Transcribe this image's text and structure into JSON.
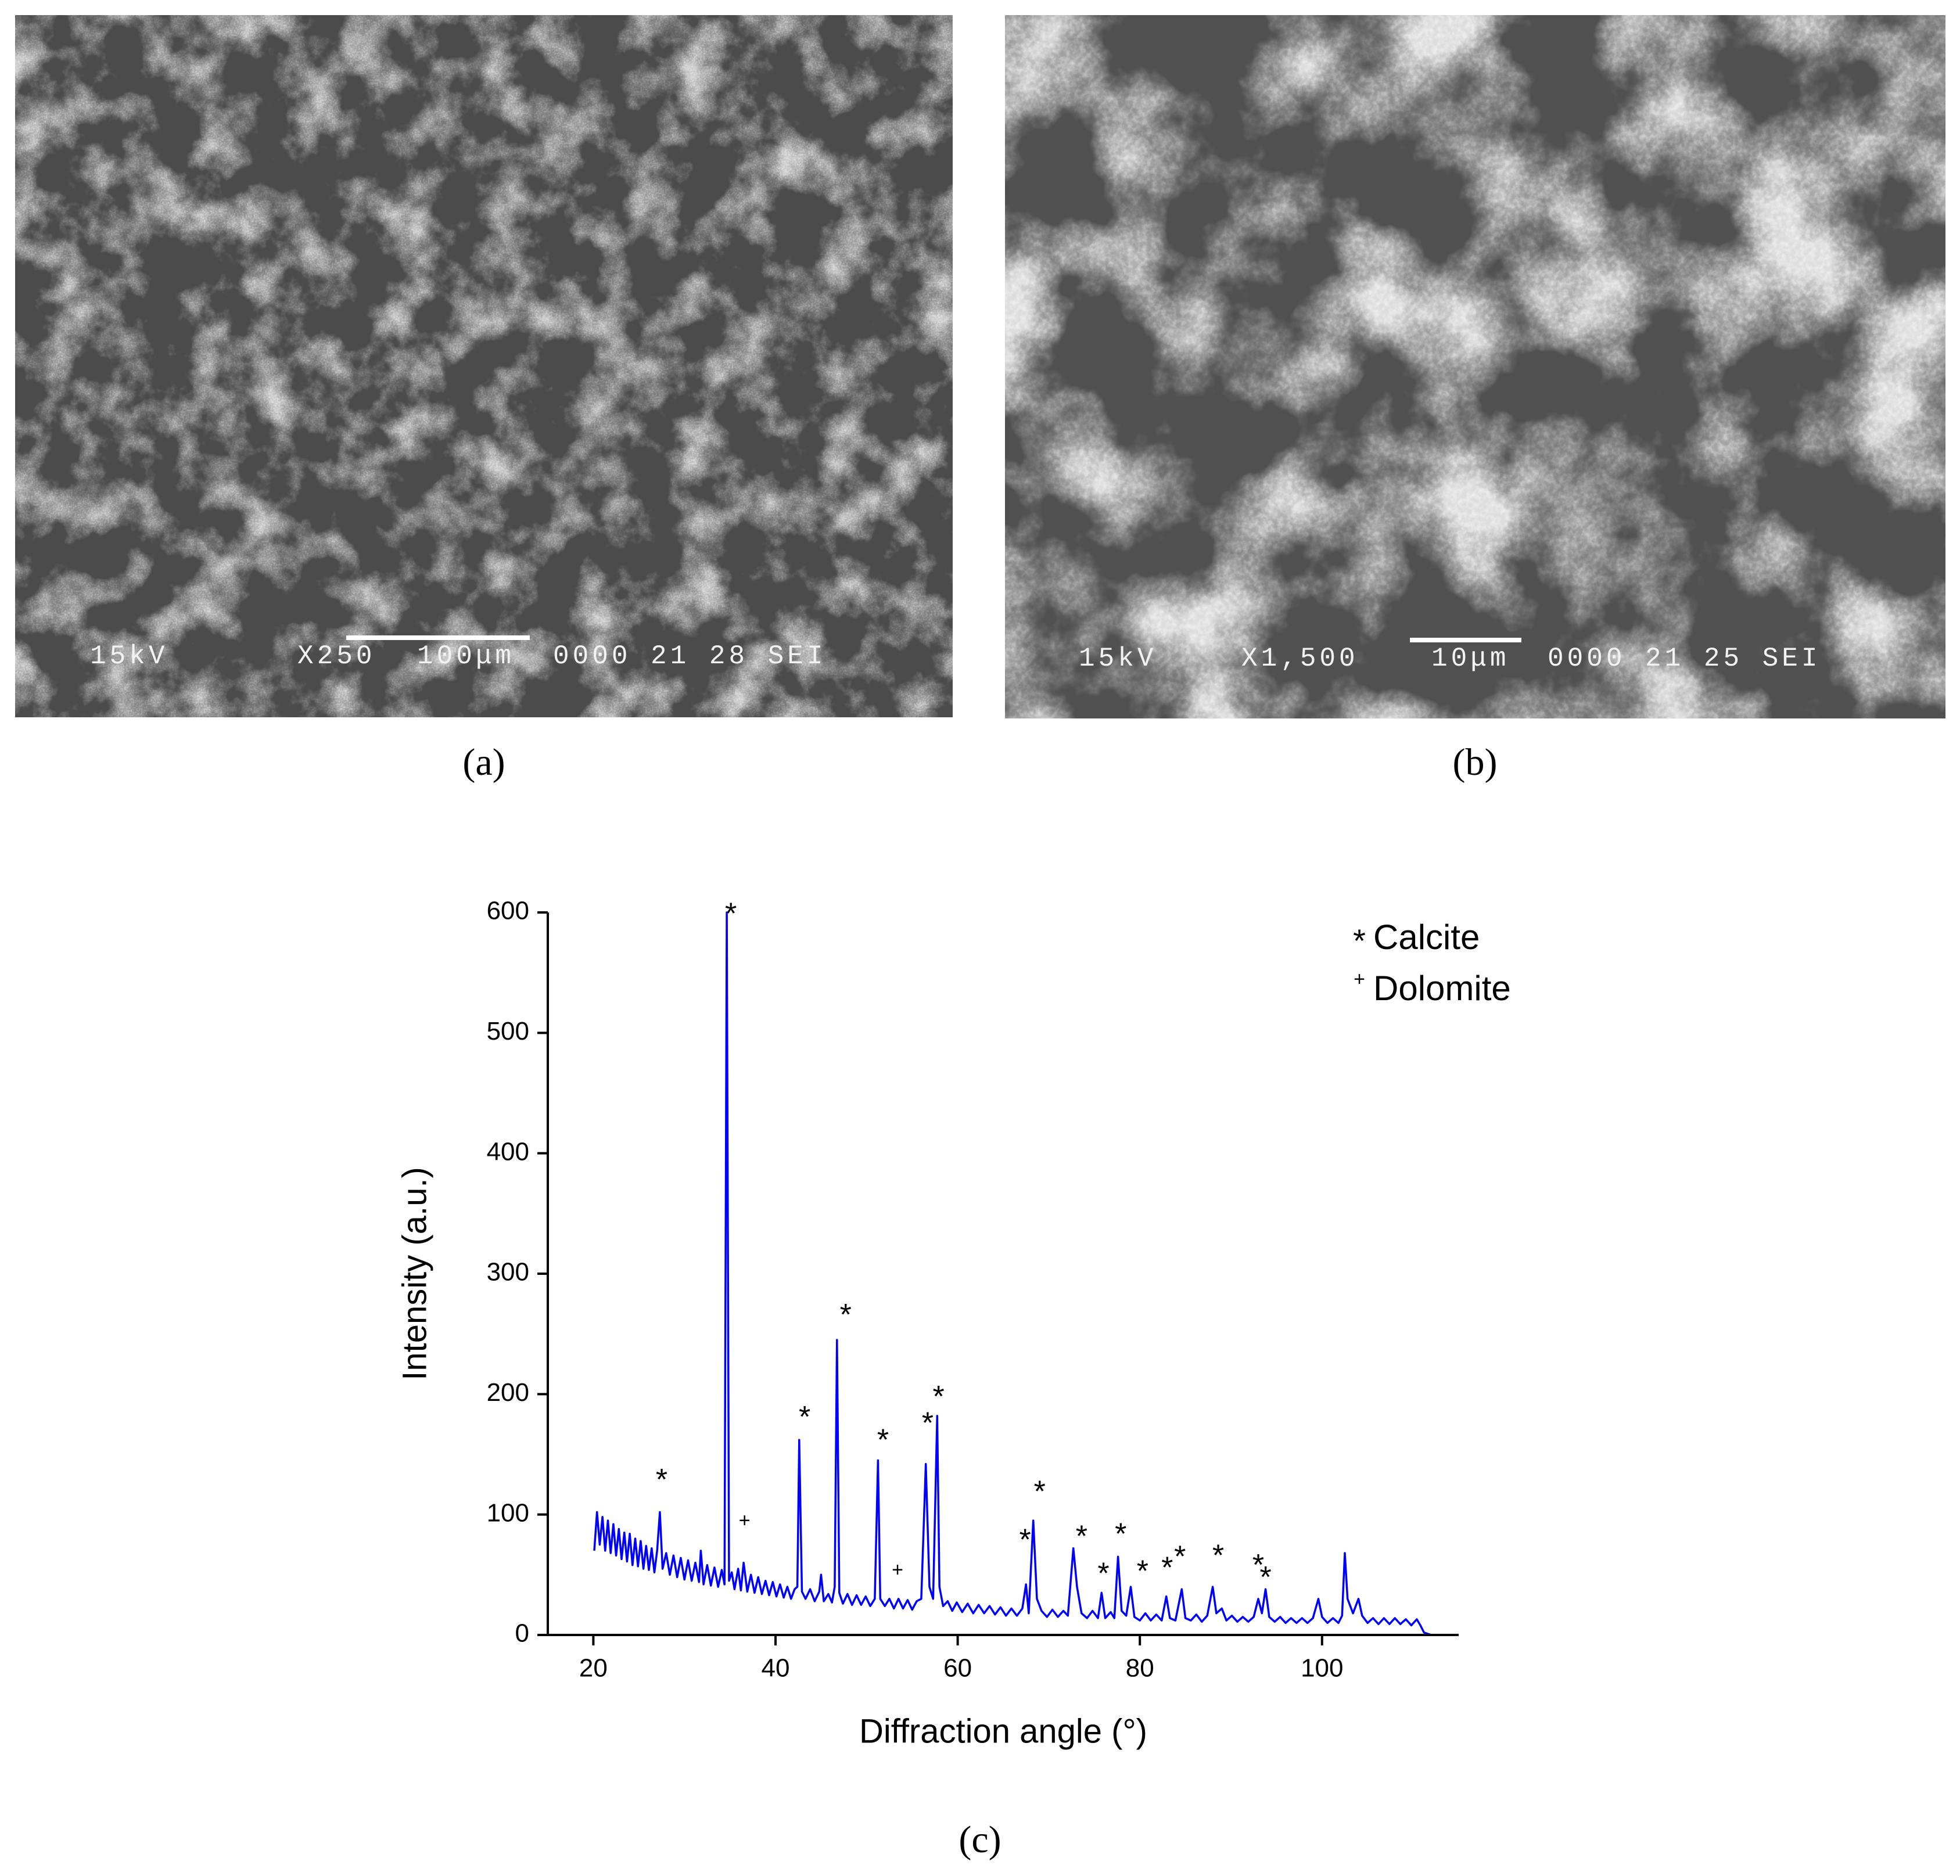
{
  "panels": [
    {
      "label": "(a)",
      "info": [
        "15kV",
        "X250",
        "100μm",
        "0000 21 28 SEI"
      ]
    },
    {
      "label": "(b)",
      "info": [
        "15kV",
        "X1,500",
        "10μm",
        "0000 21 25 SEI"
      ]
    }
  ],
  "chart_data": {
    "type": "line",
    "label": "(c)",
    "x_label": "Diffraction angle (°)",
    "y_label": "Intensity (a.u.)",
    "color": "#0000ff",
    "xlim": [
      15,
      115
    ],
    "xticks": [
      20,
      40,
      60,
      80,
      100
    ],
    "ylim": [
      0,
      600
    ],
    "yticks": [
      0,
      100,
      200,
      300,
      400,
      500,
      600
    ],
    "x": [
      20.1,
      20.4,
      20.7,
      21.0,
      21.3,
      21.6,
      21.9,
      22.2,
      22.5,
      22.8,
      23.1,
      23.4,
      23.7,
      24.0,
      24.3,
      24.6,
      24.9,
      25.2,
      25.5,
      25.8,
      26.1,
      26.4,
      26.7,
      27.0,
      27.3,
      27.6,
      28.0,
      28.4,
      28.8,
      29.2,
      29.6,
      30.0,
      30.4,
      30.8,
      31.2,
      31.6,
      31.8,
      32.1,
      32.5,
      32.9,
      33.3,
      33.7,
      34.1,
      34.4,
      34.65,
      34.9,
      35.2,
      35.5,
      35.9,
      36.2,
      36.5,
      36.9,
      37.3,
      37.7,
      38.1,
      38.5,
      38.9,
      39.3,
      39.7,
      40.1,
      40.5,
      40.9,
      41.3,
      41.7,
      42.1,
      42.4,
      42.6,
      42.9,
      43.3,
      43.8,
      44.3,
      44.8,
      45.0,
      45.3,
      45.8,
      46.2,
      46.5,
      46.75,
      47.0,
      47.4,
      47.9,
      48.4,
      48.9,
      49.4,
      49.9,
      50.4,
      50.9,
      51.25,
      51.5,
      52.0,
      52.5,
      53.0,
      53.5,
      54.0,
      54.5,
      55.0,
      55.5,
      56.0,
      56.5,
      56.9,
      57.3,
      57.75,
      58.0,
      58.4,
      58.9,
      59.4,
      59.9,
      60.5,
      61.1,
      61.7,
      62.3,
      62.9,
      63.5,
      64.1,
      64.7,
      65.3,
      65.9,
      66.5,
      67.1,
      67.5,
      67.8,
      68.3,
      68.7,
      69.2,
      69.8,
      70.4,
      71.0,
      71.6,
      72.1,
      72.7,
      73.1,
      73.6,
      74.2,
      74.8,
      75.4,
      75.8,
      76.2,
      76.8,
      77.2,
      77.6,
      78.0,
      78.5,
      79.0,
      79.4,
      80.0,
      80.6,
      81.2,
      81.8,
      82.4,
      82.9,
      83.3,
      83.9,
      84.6,
      85.0,
      85.6,
      86.2,
      86.8,
      87.4,
      88.0,
      88.4,
      89.0,
      89.5,
      90.1,
      90.7,
      91.3,
      91.9,
      92.5,
      93.0,
      93.4,
      93.8,
      94.2,
      94.8,
      95.4,
      96.0,
      96.6,
      97.2,
      97.8,
      98.4,
      99.0,
      99.6,
      100.0,
      100.6,
      101.2,
      101.8,
      102.2,
      102.5,
      102.8,
      103.4,
      104.0,
      104.4,
      105.0,
      105.6,
      106.2,
      106.8,
      107.4,
      108.0,
      108.6,
      109.2,
      109.8,
      110.4,
      110.8,
      111.2,
      112.0
    ],
    "values": [
      70,
      102,
      75,
      98,
      70,
      95,
      68,
      92,
      66,
      88,
      63,
      85,
      61,
      84,
      58,
      80,
      57,
      78,
      55,
      74,
      54,
      72,
      52,
      70,
      102,
      55,
      68,
      50,
      66,
      48,
      64,
      46,
      62,
      45,
      60,
      44,
      70,
      42,
      58,
      41,
      56,
      40,
      54,
      42,
      600,
      45,
      52,
      38,
      55,
      37,
      60,
      36,
      50,
      35,
      48,
      34,
      45,
      33,
      44,
      32,
      42,
      31,
      40,
      30,
      38,
      40,
      162,
      36,
      30,
      38,
      28,
      36,
      50,
      28,
      34,
      27,
      40,
      245,
      35,
      26,
      34,
      25,
      33,
      25,
      32,
      24,
      30,
      145,
      30,
      24,
      30,
      22,
      30,
      22,
      29,
      21,
      28,
      30,
      142,
      40,
      30,
      182,
      40,
      24,
      28,
      20,
      27,
      19,
      26,
      18,
      25,
      18,
      24,
      17,
      23,
      16,
      22,
      16,
      22,
      42,
      18,
      95,
      30,
      20,
      15,
      21,
      15,
      20,
      16,
      72,
      40,
      18,
      14,
      20,
      14,
      35,
      14,
      19,
      14,
      65,
      20,
      16,
      40,
      15,
      12,
      18,
      12,
      17,
      12,
      32,
      14,
      12,
      38,
      14,
      12,
      17,
      11,
      16,
      40,
      18,
      22,
      12,
      16,
      11,
      15,
      11,
      15,
      30,
      18,
      38,
      15,
      11,
      15,
      10,
      14,
      10,
      14,
      10,
      14,
      30,
      15,
      10,
      14,
      10,
      16,
      68,
      30,
      18,
      30,
      16,
      10,
      14,
      9,
      14,
      9,
      14,
      9,
      13,
      8,
      13,
      8,
      2,
      0
    ],
    "annotations": [
      {
        "x": 27.5,
        "y": 133,
        "text": "*"
      },
      {
        "x": 35.1,
        "y": 603,
        "text": "*"
      },
      {
        "x": 43.2,
        "y": 185,
        "text": "*"
      },
      {
        "x": 47.7,
        "y": 270,
        "text": "*"
      },
      {
        "x": 51.8,
        "y": 166,
        "text": "*"
      },
      {
        "x": 56.7,
        "y": 180,
        "text": "*"
      },
      {
        "x": 57.9,
        "y": 202,
        "text": "*"
      },
      {
        "x": 67.4,
        "y": 83,
        "text": "*"
      },
      {
        "x": 69.0,
        "y": 123,
        "text": "*"
      },
      {
        "x": 73.6,
        "y": 86,
        "text": "*"
      },
      {
        "x": 76.0,
        "y": 55,
        "text": "*"
      },
      {
        "x": 77.9,
        "y": 88,
        "text": "*"
      },
      {
        "x": 80.3,
        "y": 57,
        "text": "*"
      },
      {
        "x": 83.0,
        "y": 60,
        "text": "*"
      },
      {
        "x": 84.4,
        "y": 69,
        "text": "*"
      },
      {
        "x": 88.6,
        "y": 70,
        "text": "*"
      },
      {
        "x": 93.0,
        "y": 62,
        "text": "*"
      },
      {
        "x": 93.8,
        "y": 52,
        "text": "*"
      },
      {
        "x": 36.6,
        "y": 94,
        "text": "+"
      },
      {
        "x": 53.4,
        "y": 53,
        "text": "+"
      }
    ],
    "legend": [
      {
        "symbol": "*",
        "label": "Calcite"
      },
      {
        "symbol": "+",
        "label": "Dolomite"
      }
    ]
  }
}
